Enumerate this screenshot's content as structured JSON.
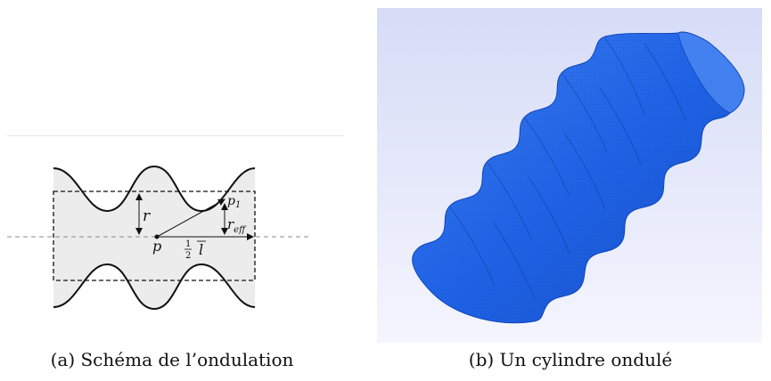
{
  "panels": {
    "a": {
      "caption": "(a) Schéma de l’ondulation",
      "labels": {
        "r": "r",
        "p": "p",
        "p1_base": "p",
        "p1_sub": "1",
        "reff_base": "r",
        "reff_sub": "eff",
        "half_num": "1",
        "half_den": "2",
        "l": "l"
      },
      "colors": {
        "fill": "#ececec",
        "stroke": "#111111",
        "dashed": "#888888"
      }
    },
    "b": {
      "caption": "(b) Un cylindre ondulé",
      "colors": {
        "background_top": "#d7dcf7",
        "background_bottom": "#f4f5fe",
        "cylinder": "#1f63e6",
        "cylinder_dark": "#0e46b8",
        "cylinder_light": "#4a86f2"
      }
    }
  }
}
